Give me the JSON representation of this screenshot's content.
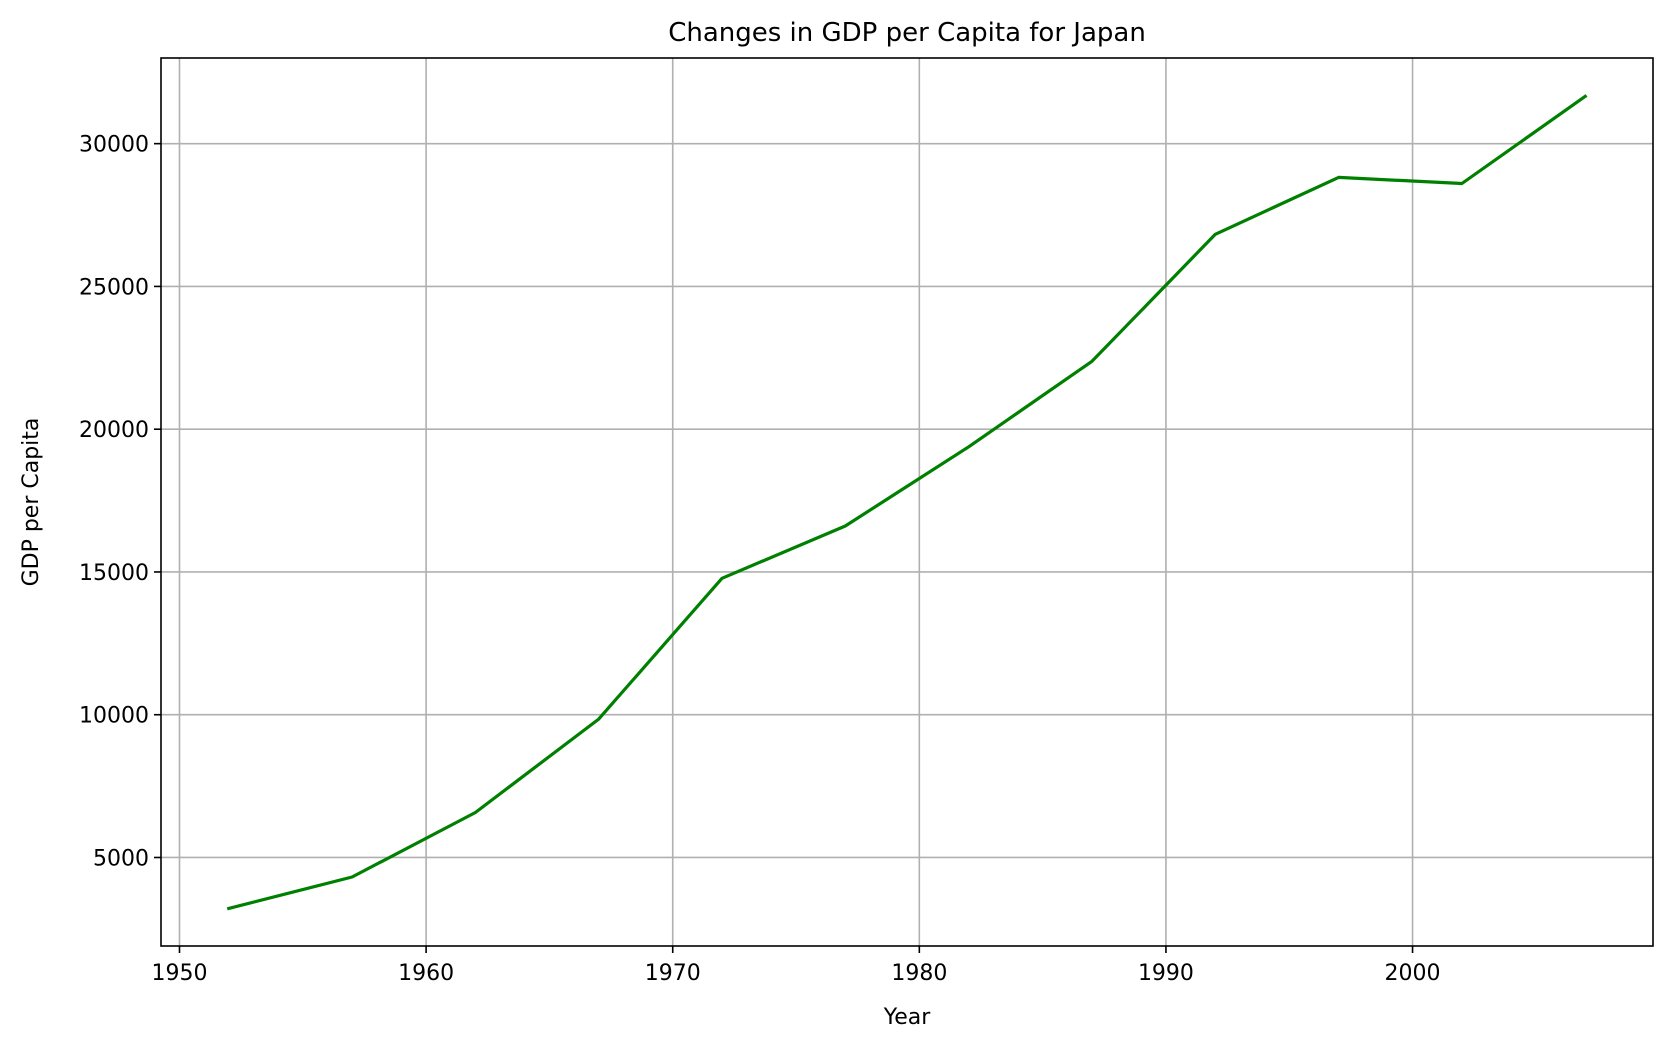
{
  "chart_data": {
    "type": "line",
    "title": "Changes in GDP per Capita for Japan",
    "xlabel": "Year",
    "ylabel": "GDP per Capita",
    "xlim": [
      1949.25,
      2009.75
    ],
    "ylim": [
      1900,
      33000
    ],
    "xticks": [
      1950,
      1960,
      1970,
      1980,
      1990,
      2000
    ],
    "yticks": [
      5000,
      10000,
      15000,
      20000,
      25000,
      30000
    ],
    "grid": true,
    "series": [
      {
        "color": "#008000",
        "x": [
          1952,
          1957,
          1962,
          1967,
          1972,
          1977,
          1982,
          1987,
          1992,
          1997,
          2002,
          2007
        ],
        "y": [
          3217,
          4318,
          6577,
          9848,
          14779,
          16610,
          19384,
          22376,
          26825,
          28817,
          28605,
          31656
        ]
      }
    ]
  }
}
